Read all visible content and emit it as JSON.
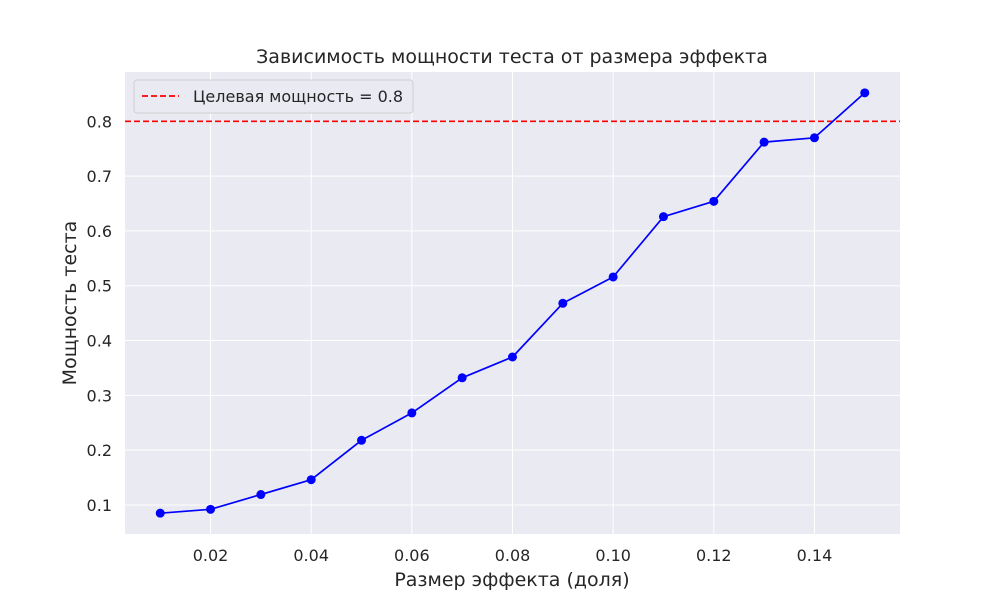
{
  "chart_data": {
    "type": "line",
    "title": "Зависимость мощности теста от размера эффекта",
    "xlabel": "Размер эффекта (доля)",
    "ylabel": "Мощность теста",
    "xlim": [
      0.003,
      0.157
    ],
    "ylim": [
      0.047,
      0.89
    ],
    "xticks": [
      0.02,
      0.04,
      0.06,
      0.08,
      0.1,
      0.12,
      0.14
    ],
    "xtick_labels": [
      "0.02",
      "0.04",
      "0.06",
      "0.08",
      "0.10",
      "0.12",
      "0.14"
    ],
    "yticks": [
      0.1,
      0.2,
      0.3,
      0.4,
      0.5,
      0.6,
      0.7,
      0.8
    ],
    "ytick_labels": [
      "0.1",
      "0.2",
      "0.3",
      "0.4",
      "0.5",
      "0.6",
      "0.7",
      "0.8"
    ],
    "grid": true,
    "legend_position": "top-left",
    "background_color": "#eaeaf2",
    "series": [
      {
        "color": "#0000ff",
        "marker": "circle",
        "x": [
          0.01,
          0.02,
          0.03,
          0.04,
          0.05,
          0.06,
          0.07,
          0.08,
          0.09,
          0.1,
          0.11,
          0.12,
          0.13,
          0.14,
          0.15
        ],
        "y": [
          0.085,
          0.092,
          0.119,
          0.146,
          0.218,
          0.268,
          0.332,
          0.37,
          0.468,
          0.516,
          0.626,
          0.654,
          0.762,
          0.77,
          0.852
        ]
      }
    ],
    "reference_lines": [
      {
        "orientation": "horizontal",
        "y": 0.8,
        "color": "#ff0000",
        "style": "dashed",
        "label": "Целевая мощность = 0.8"
      }
    ]
  }
}
